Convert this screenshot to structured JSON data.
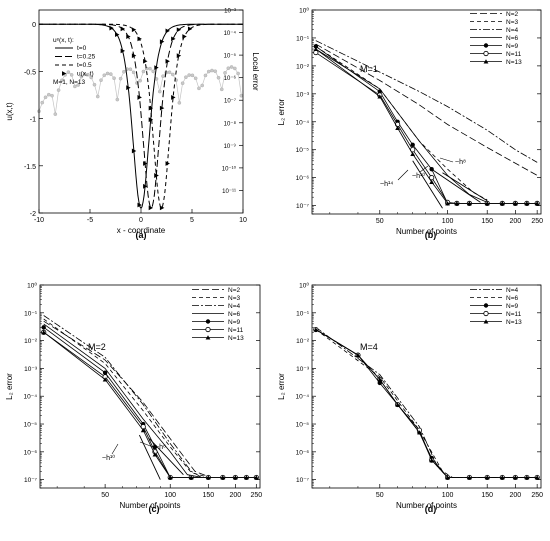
{
  "chart_data": [
    {
      "panel": "(a)",
      "type": "line",
      "xlabel": "x - coordinate",
      "ylabel": "u(x,t)",
      "y2label": "Local error",
      "xlim": [
        -10,
        10
      ],
      "ylim": [
        -2,
        0.15
      ],
      "xticks": [
        "-10",
        "-5",
        "0",
        "5",
        "10"
      ],
      "yticks": [
        "0",
        "-0.5",
        "-1",
        "-1.5",
        "-2"
      ],
      "y2log": true,
      "y2lim": [
        1e-12,
        0.001
      ],
      "y2ticks": [
        "10⁻³",
        "10⁻⁴",
        "10⁻⁵",
        "10⁻⁶",
        "10⁻⁷",
        "10⁻⁸",
        "10⁻⁹",
        "10⁻¹⁰",
        "10⁻¹¹"
      ],
      "legend": {
        "title": "uᵉ(x, t):",
        "entries": [
          "t=0",
          "t=0.25",
          "t=0.5",
          "u(x, t)"
        ],
        "note": "M=1, N=13",
        "placement": "top-left"
      },
      "series": [
        {
          "name": "t=0",
          "style": "solid",
          "center": 0
        },
        {
          "name": "t=0.25",
          "style": "longdash",
          "center": 1
        },
        {
          "name": "t=0.5",
          "style": "dash",
          "center": 2
        },
        {
          "name": "u(x, t)",
          "style": "triangles"
        }
      ],
      "error_curve": {
        "style": "gray-circles",
        "axis": "right"
      }
    },
    {
      "panel": "(b)",
      "type": "line",
      "xlabel": "Number of points",
      "ylabel": "L₂ error",
      "xlog": true,
      "ylog": true,
      "xlim": [
        25,
        260
      ],
      "ylim": [
        5e-08,
        1
      ],
      "xticks": [
        50,
        100,
        150,
        200,
        250
      ],
      "yticks": [
        "10⁰",
        "10⁻¹",
        "10⁻²",
        "10⁻³",
        "10⁻⁴",
        "10⁻⁵",
        "10⁻⁶",
        "10⁻⁷"
      ],
      "annotation": "M=1",
      "legend": [
        "N=2",
        "N=3",
        "N=4",
        "N=6",
        "N=9",
        "N=11",
        "N=13"
      ],
      "slopes": [
        "~h⁸",
        "~h¹⁰",
        "~h¹⁴"
      ]
    },
    {
      "panel": "(c)",
      "type": "line",
      "xlabel": "Number of points",
      "ylabel": "L₂ error",
      "xlog": true,
      "ylog": true,
      "xlim": [
        25,
        260
      ],
      "ylim": [
        5e-08,
        1
      ],
      "xticks": [
        50,
        100,
        150,
        200,
        250
      ],
      "yticks": [
        "10⁰",
        "10⁻¹",
        "10⁻²",
        "10⁻³",
        "10⁻⁴",
        "10⁻⁵",
        "10⁻⁶",
        "10⁻⁷"
      ],
      "annotation": "M=2",
      "legend": [
        "N=2",
        "N=3",
        "N=4",
        "N=6",
        "N=9",
        "N=11",
        "N=13"
      ],
      "slopes": [
        "~h⁸",
        "~h¹⁰"
      ]
    },
    {
      "panel": "(d)",
      "type": "line",
      "xlabel": "Number of points",
      "ylabel": "L₂ error",
      "xlog": true,
      "ylog": true,
      "xlim": [
        25,
        260
      ],
      "ylim": [
        5e-08,
        1
      ],
      "xticks": [
        50,
        100,
        150,
        200,
        250
      ],
      "yticks": [
        "10⁰",
        "10⁻¹",
        "10⁻²",
        "10⁻³",
        "10⁻⁴",
        "10⁻⁵",
        "10⁻⁶",
        "10⁻⁷"
      ],
      "annotation": "M=4",
      "legend": [
        "N=4",
        "N=6",
        "N=9",
        "N=11",
        "N=13"
      ],
      "slopes": []
    }
  ]
}
